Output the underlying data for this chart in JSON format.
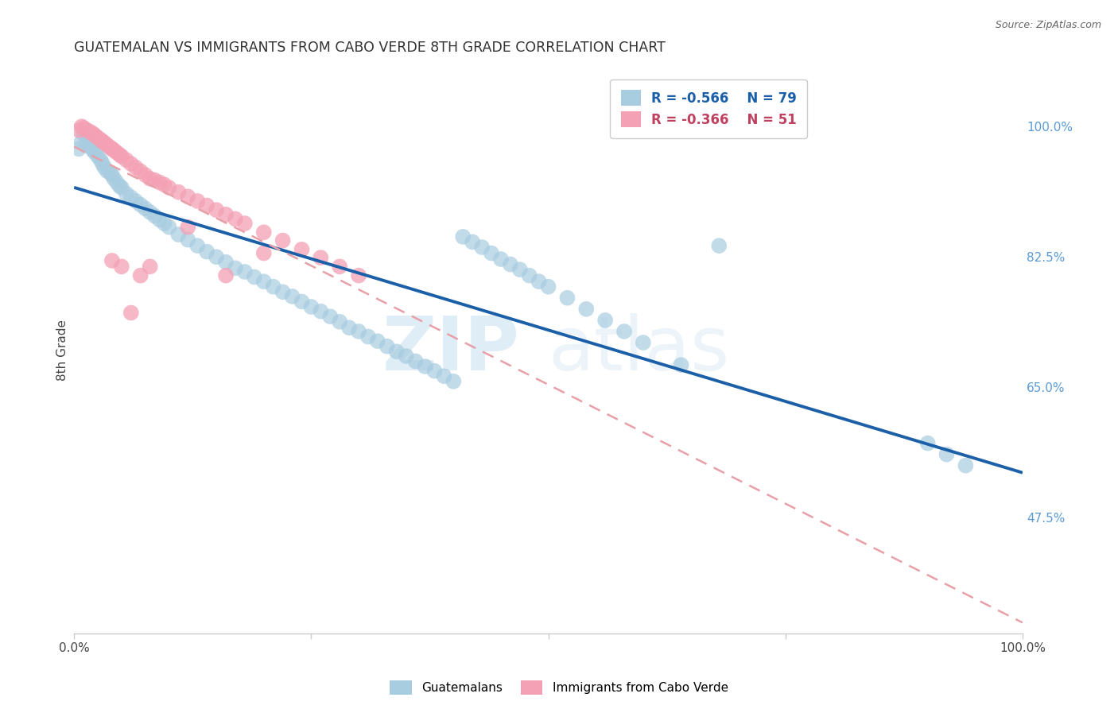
{
  "title": "GUATEMALAN VS IMMIGRANTS FROM CABO VERDE 8TH GRADE CORRELATION CHART",
  "source": "Source: ZipAtlas.com",
  "ylabel": "8th Grade",
  "ytick_labels": [
    "100.0%",
    "82.5%",
    "65.0%",
    "47.5%"
  ],
  "ytick_values": [
    1.0,
    0.825,
    0.65,
    0.475
  ],
  "legend_blue_r": "R = -0.566",
  "legend_blue_n": "N = 79",
  "legend_pink_r": "R = -0.366",
  "legend_pink_n": "N = 51",
  "blue_color": "#a8cce0",
  "pink_color": "#f4a0b5",
  "blue_line_color": "#1a5fa8",
  "pink_line_color": "#e8a0a8",
  "x_min": 0.0,
  "x_max": 1.0,
  "y_min": 0.32,
  "y_max": 1.08,
  "background_color": "#ffffff",
  "grid_color": "#d0d0d0",
  "watermark_zip": "ZIP",
  "watermark_atlas": "atlas",
  "blue_scatter_x": [
    0.005,
    0.008,
    0.01,
    0.012,
    0.015,
    0.018,
    0.02,
    0.022,
    0.025,
    0.028,
    0.03,
    0.032,
    0.035,
    0.038,
    0.04,
    0.042,
    0.045,
    0.048,
    0.05,
    0.055,
    0.06,
    0.065,
    0.07,
    0.075,
    0.08,
    0.085,
    0.09,
    0.095,
    0.1,
    0.11,
    0.12,
    0.13,
    0.14,
    0.15,
    0.16,
    0.17,
    0.18,
    0.19,
    0.2,
    0.21,
    0.22,
    0.23,
    0.24,
    0.25,
    0.26,
    0.27,
    0.28,
    0.29,
    0.3,
    0.31,
    0.32,
    0.33,
    0.34,
    0.35,
    0.36,
    0.37,
    0.38,
    0.39,
    0.4,
    0.41,
    0.42,
    0.43,
    0.44,
    0.45,
    0.46,
    0.47,
    0.48,
    0.49,
    0.5,
    0.52,
    0.54,
    0.56,
    0.58,
    0.6,
    0.64,
    0.68,
    0.9,
    0.92,
    0.94
  ],
  "blue_scatter_y": [
    0.97,
    0.98,
    0.99,
    0.975,
    0.985,
    0.972,
    0.968,
    0.965,
    0.96,
    0.955,
    0.95,
    0.945,
    0.94,
    0.938,
    0.935,
    0.93,
    0.925,
    0.92,
    0.918,
    0.91,
    0.905,
    0.9,
    0.895,
    0.89,
    0.885,
    0.88,
    0.875,
    0.87,
    0.865,
    0.855,
    0.848,
    0.84,
    0.832,
    0.825,
    0.818,
    0.81,
    0.805,
    0.798,
    0.792,
    0.785,
    0.778,
    0.772,
    0.765,
    0.758,
    0.752,
    0.745,
    0.738,
    0.73,
    0.725,
    0.718,
    0.712,
    0.705,
    0.698,
    0.692,
    0.685,
    0.678,
    0.672,
    0.665,
    0.658,
    0.852,
    0.845,
    0.838,
    0.83,
    0.822,
    0.815,
    0.808,
    0.8,
    0.792,
    0.785,
    0.77,
    0.755,
    0.74,
    0.725,
    0.71,
    0.68,
    0.84,
    0.575,
    0.56,
    0.545
  ],
  "pink_scatter_x": [
    0.005,
    0.008,
    0.01,
    0.012,
    0.015,
    0.018,
    0.02,
    0.022,
    0.025,
    0.028,
    0.03,
    0.032,
    0.035,
    0.038,
    0.04,
    0.042,
    0.045,
    0.048,
    0.05,
    0.055,
    0.06,
    0.065,
    0.07,
    0.075,
    0.08,
    0.085,
    0.09,
    0.095,
    0.1,
    0.11,
    0.12,
    0.13,
    0.14,
    0.15,
    0.16,
    0.17,
    0.18,
    0.2,
    0.22,
    0.24,
    0.26,
    0.28,
    0.3,
    0.04,
    0.05,
    0.06,
    0.07,
    0.08,
    0.12,
    0.16,
    0.2
  ],
  "pink_scatter_y": [
    0.995,
    1.0,
    0.998,
    0.996,
    0.994,
    0.992,
    0.99,
    0.988,
    0.985,
    0.982,
    0.98,
    0.978,
    0.975,
    0.972,
    0.97,
    0.968,
    0.965,
    0.962,
    0.96,
    0.955,
    0.95,
    0.945,
    0.94,
    0.935,
    0.93,
    0.928,
    0.925,
    0.922,
    0.918,
    0.912,
    0.906,
    0.9,
    0.894,
    0.888,
    0.882,
    0.876,
    0.87,
    0.858,
    0.847,
    0.835,
    0.824,
    0.812,
    0.8,
    0.82,
    0.812,
    0.75,
    0.8,
    0.812,
    0.865,
    0.8,
    0.83
  ]
}
